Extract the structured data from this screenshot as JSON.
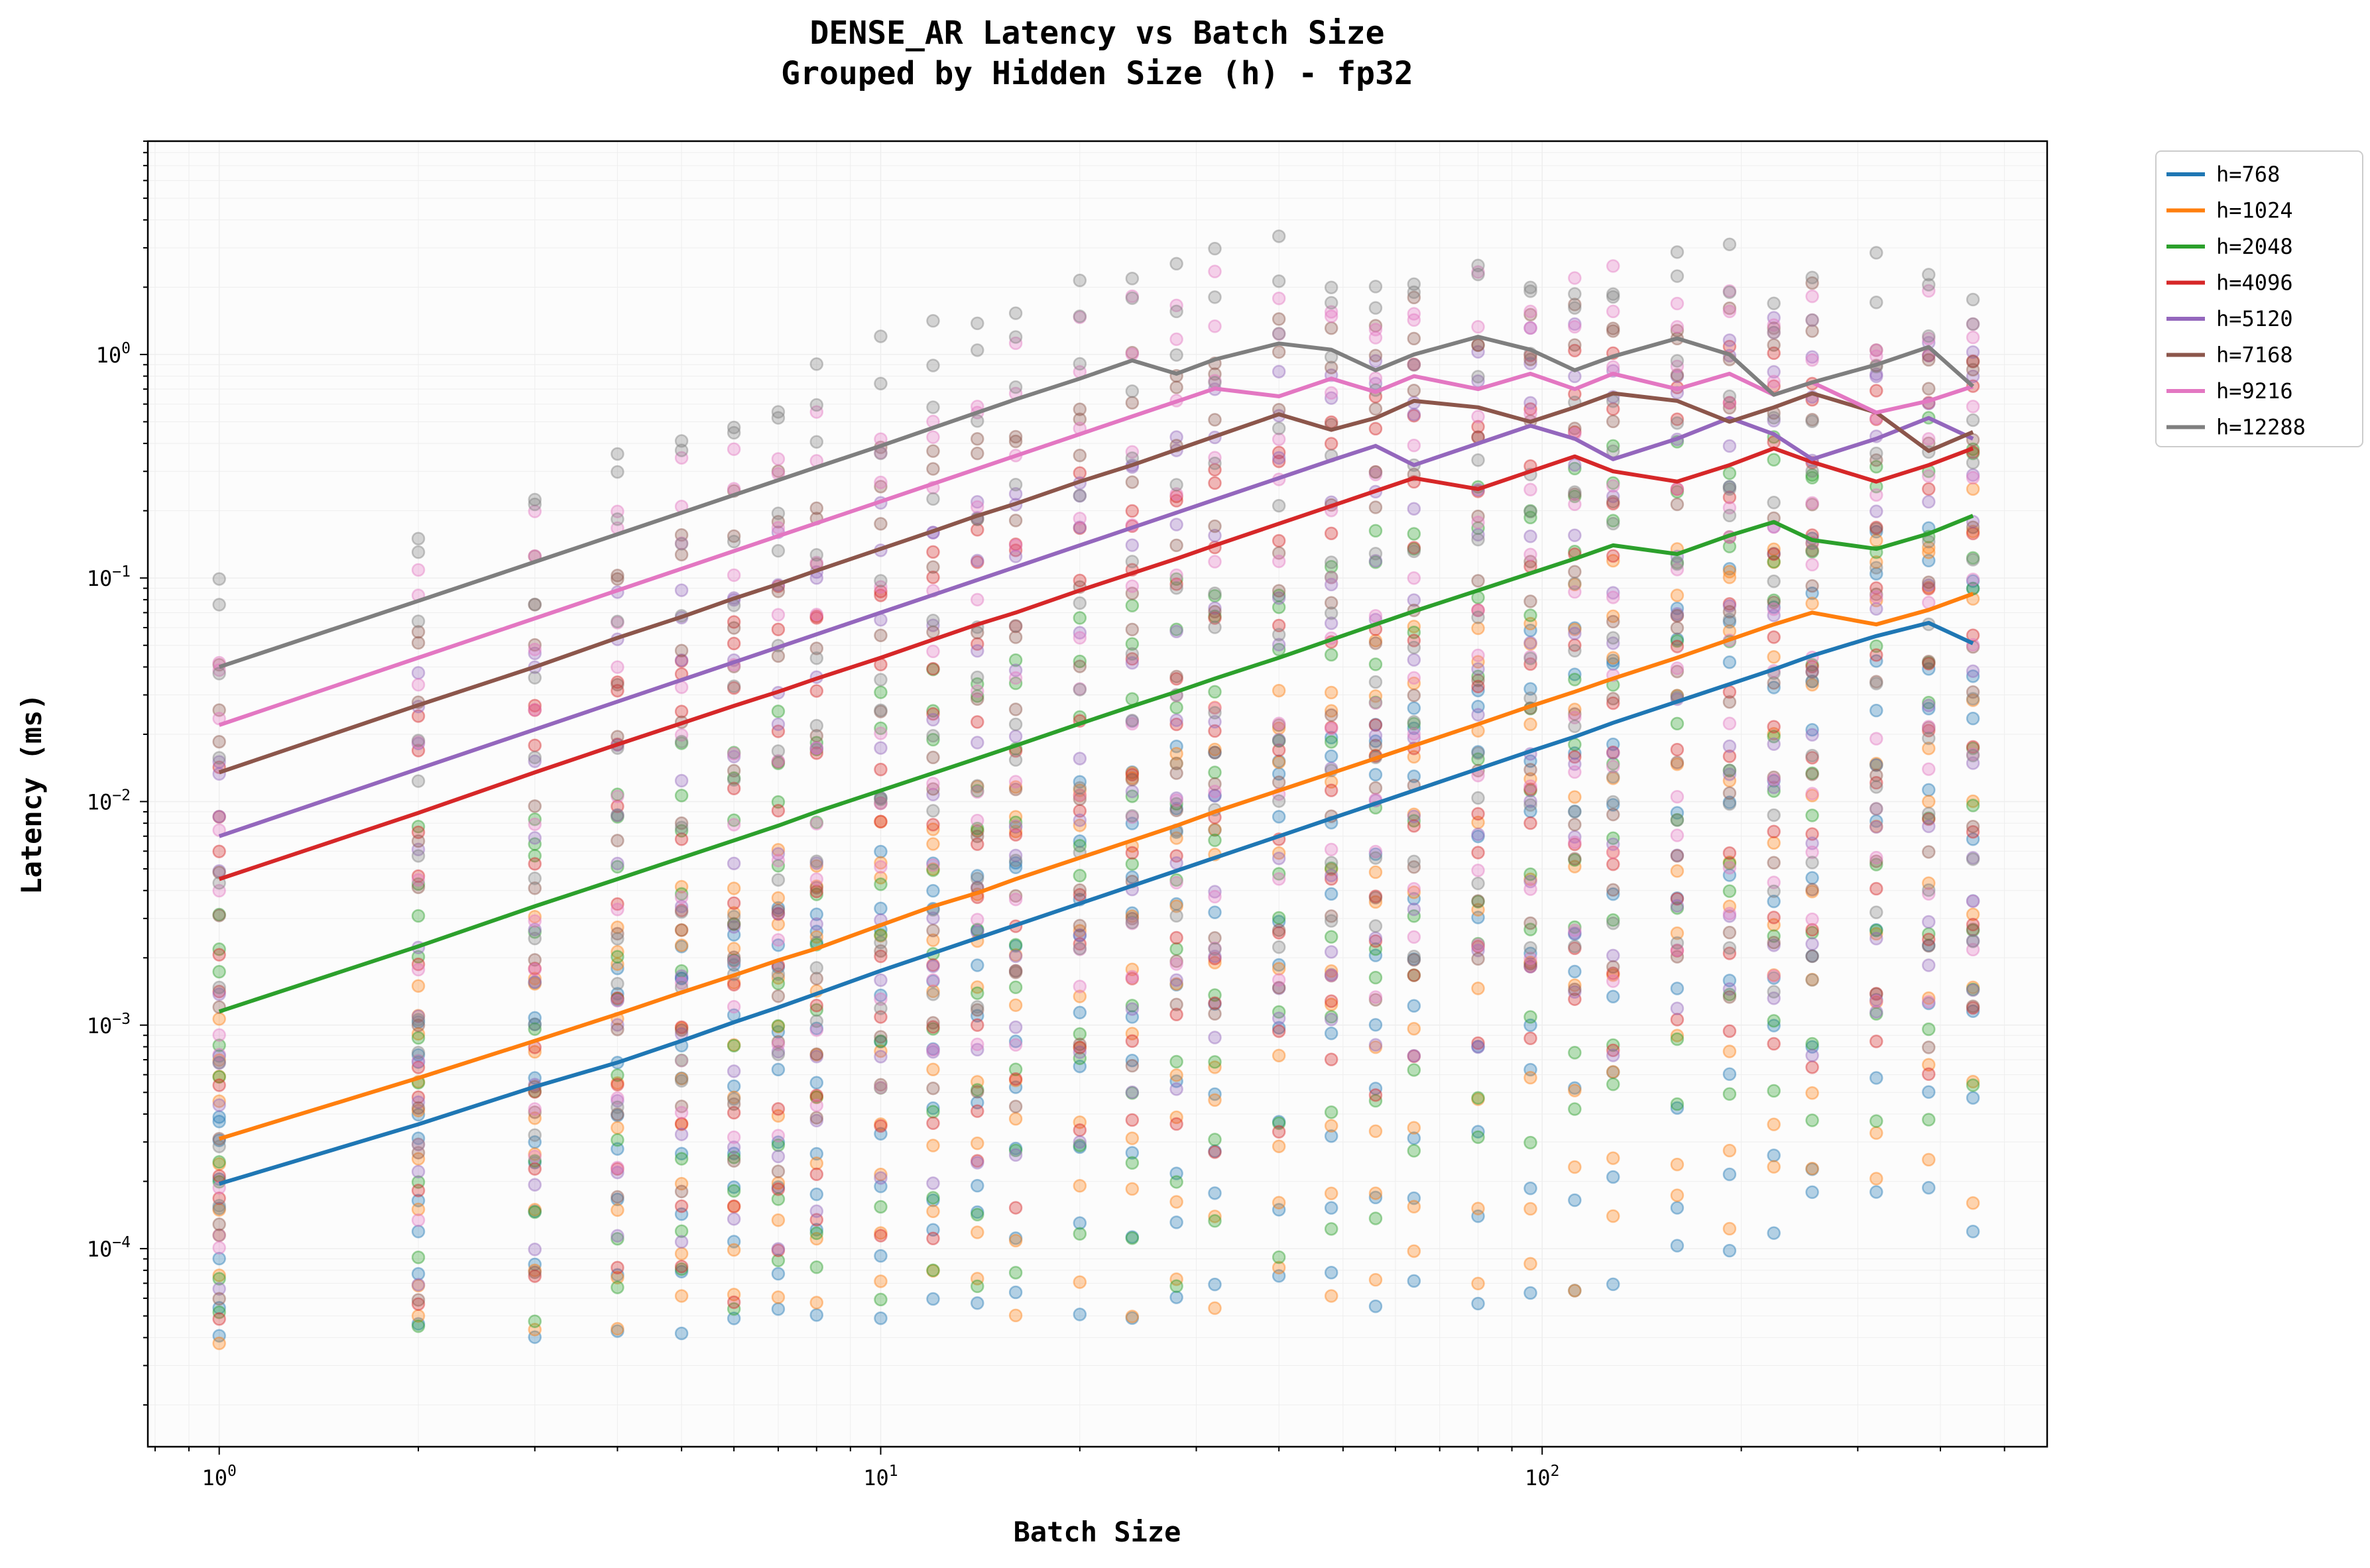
{
  "chart_data": {
    "type": "line",
    "title": "DENSE_AR Latency vs Batch Size",
    "subtitle": "Grouped by Hidden Size (h) - fp32",
    "xlabel": "Batch Size",
    "ylabel": "Latency (ms)",
    "xscale": "log",
    "yscale": "log",
    "xlim": [
      0.78,
      580
    ],
    "ylim": [
      1.3e-05,
      9.0
    ],
    "x_ticks": [
      {
        "value": 1,
        "base": "10",
        "exp": "0"
      },
      {
        "value": 10,
        "base": "10",
        "exp": "1"
      },
      {
        "value": 100,
        "base": "10",
        "exp": "2"
      }
    ],
    "y_ticks": [
      {
        "value": 0.0001,
        "base": "10",
        "exp": "−4"
      },
      {
        "value": 0.001,
        "base": "10",
        "exp": "−3"
      },
      {
        "value": 0.01,
        "base": "10",
        "exp": "−2"
      },
      {
        "value": 0.1,
        "base": "10",
        "exp": "−1"
      },
      {
        "value": 1,
        "base": "10",
        "exp": "0"
      }
    ],
    "grid": true,
    "legend_position": "outside-top-right",
    "x": [
      1,
      2,
      3,
      4,
      5,
      6,
      7,
      8,
      10,
      12,
      14,
      16,
      20,
      24,
      28,
      32,
      40,
      48,
      56,
      64,
      80,
      96,
      112,
      128,
      160,
      192,
      224,
      256,
      320,
      384,
      448
    ],
    "series": [
      {
        "name": "h=768",
        "color": "#1f77b4",
        "values": [
          0.000195,
          0.00036,
          0.00053,
          0.00068,
          0.00085,
          0.00103,
          0.0012,
          0.00138,
          0.00175,
          0.0021,
          0.00245,
          0.0028,
          0.0035,
          0.0042,
          0.0049,
          0.0056,
          0.007,
          0.0084,
          0.0098,
          0.0112,
          0.014,
          0.0168,
          0.0195,
          0.0225,
          0.028,
          0.0335,
          0.039,
          0.045,
          0.055,
          0.063,
          0.051
        ]
      },
      {
        "name": "h=1024",
        "color": "#ff7f0e",
        "values": [
          0.00031,
          0.00058,
          0.00085,
          0.00112,
          0.0014,
          0.00167,
          0.00195,
          0.0022,
          0.0028,
          0.0034,
          0.0039,
          0.0045,
          0.0056,
          0.0067,
          0.0078,
          0.009,
          0.0112,
          0.0134,
          0.0156,
          0.0178,
          0.0222,
          0.0267,
          0.031,
          0.0355,
          0.044,
          0.053,
          0.062,
          0.07,
          0.062,
          0.072,
          0.085
        ]
      },
      {
        "name": "h=2048",
        "color": "#2ca02c",
        "values": [
          0.00115,
          0.00225,
          0.0034,
          0.0045,
          0.0056,
          0.0067,
          0.0078,
          0.009,
          0.0112,
          0.0134,
          0.0156,
          0.0178,
          0.0223,
          0.0267,
          0.031,
          0.0355,
          0.044,
          0.053,
          0.062,
          0.071,
          0.088,
          0.105,
          0.122,
          0.14,
          0.128,
          0.155,
          0.178,
          0.148,
          0.135,
          0.158,
          0.19
        ]
      },
      {
        "name": "h=4096",
        "color": "#d62728",
        "values": [
          0.0045,
          0.0089,
          0.0135,
          0.018,
          0.0224,
          0.0268,
          0.031,
          0.0355,
          0.044,
          0.053,
          0.062,
          0.07,
          0.088,
          0.105,
          0.122,
          0.14,
          0.175,
          0.21,
          0.245,
          0.28,
          0.25,
          0.3,
          0.35,
          0.3,
          0.27,
          0.32,
          0.38,
          0.33,
          0.27,
          0.32,
          0.38
        ]
      },
      {
        "name": "h=5120",
        "color": "#9467bd",
        "values": [
          0.007,
          0.014,
          0.021,
          0.028,
          0.035,
          0.042,
          0.049,
          0.056,
          0.07,
          0.084,
          0.098,
          0.112,
          0.14,
          0.168,
          0.196,
          0.224,
          0.28,
          0.336,
          0.39,
          0.32,
          0.4,
          0.48,
          0.42,
          0.34,
          0.42,
          0.52,
          0.44,
          0.34,
          0.42,
          0.52,
          0.42
        ]
      },
      {
        "name": "h=7168",
        "color": "#8c564b",
        "values": [
          0.0135,
          0.027,
          0.04,
          0.054,
          0.067,
          0.081,
          0.094,
          0.108,
          0.135,
          0.162,
          0.19,
          0.215,
          0.27,
          0.32,
          0.375,
          0.43,
          0.54,
          0.46,
          0.52,
          0.62,
          0.58,
          0.5,
          0.58,
          0.67,
          0.62,
          0.5,
          0.58,
          0.67,
          0.55,
          0.37,
          0.45
        ]
      },
      {
        "name": "h=9216",
        "color": "#e377c2",
        "values": [
          0.022,
          0.044,
          0.066,
          0.088,
          0.11,
          0.132,
          0.154,
          0.176,
          0.22,
          0.264,
          0.308,
          0.352,
          0.44,
          0.528,
          0.616,
          0.704,
          0.65,
          0.78,
          0.68,
          0.8,
          0.7,
          0.82,
          0.7,
          0.82,
          0.7,
          0.82,
          0.66,
          0.75,
          0.55,
          0.62,
          0.72
        ]
      },
      {
        "name": "h=12288",
        "color": "#7f7f7f",
        "values": [
          0.04,
          0.079,
          0.118,
          0.157,
          0.196,
          0.235,
          0.274,
          0.313,
          0.39,
          0.47,
          0.55,
          0.63,
          0.78,
          0.94,
          0.82,
          0.95,
          1.12,
          1.05,
          0.85,
          1.0,
          1.2,
          1.05,
          0.85,
          0.98,
          1.18,
          1.0,
          0.66,
          0.75,
          0.9,
          1.08,
          0.72
        ]
      }
    ]
  }
}
